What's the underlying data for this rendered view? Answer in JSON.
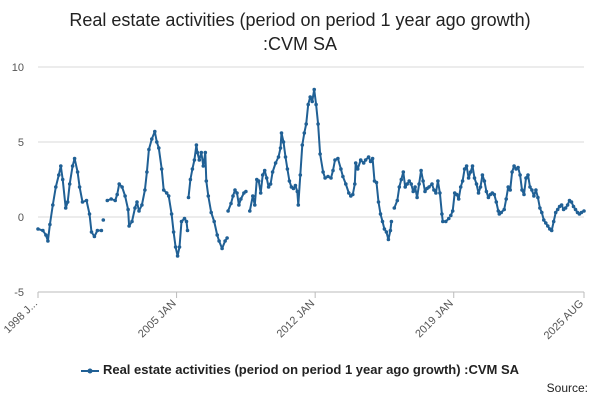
{
  "chart_data": {
    "type": "line",
    "title_line1": "Real estate activities (period on period 1 year ago growth)",
    "title_line2": ":CVM SA",
    "xlabel": "",
    "ylabel": "",
    "ylim": [
      -5,
      10
    ],
    "yticks": [
      -5,
      0,
      5,
      10
    ],
    "xlim": [
      1998.0,
      2025.58
    ],
    "xticks": [
      {
        "value": 1998.0,
        "label": "1998 J..."
      },
      {
        "value": 2005.0,
        "label": "2005 JAN"
      },
      {
        "value": 2012.0,
        "label": "2012 JAN"
      },
      {
        "value": 2019.0,
        "label": "2019 JAN"
      },
      {
        "value": 2025.58,
        "label": "2025 AUG"
      }
    ],
    "series": [
      {
        "name": "Real estate activities (period on period 1 year ago growth) :CVM SA",
        "color": "#206095",
        "segments": [
          [
            [
              1998.0,
              -0.8
            ],
            [
              1998.25,
              -0.9
            ],
            [
              1998.4,
              -1.2
            ],
            [
              1998.5,
              -1.6
            ],
            [
              1998.6,
              -0.5
            ],
            [
              1998.75,
              0.8
            ],
            [
              1998.9,
              2.0
            ],
            [
              1999.05,
              2.8
            ],
            [
              1999.15,
              3.4
            ],
            [
              1999.25,
              2.5
            ],
            [
              1999.4,
              0.6
            ],
            [
              1999.5,
              1.0
            ],
            [
              1999.6,
              2.2
            ],
            [
              1999.75,
              3.4
            ],
            [
              1999.85,
              3.9
            ],
            [
              2000.0,
              3.0
            ],
            [
              2000.1,
              2.0
            ],
            [
              2000.25,
              1.0
            ],
            [
              2000.45,
              1.1
            ],
            [
              2000.6,
              0.2
            ],
            [
              2000.7,
              -1.0
            ],
            [
              2000.85,
              -1.3
            ],
            [
              2001.0,
              -0.9
            ],
            [
              2001.2,
              -0.9
            ]
          ],
          [
            [
              2001.3,
              -0.2
            ]
          ],
          [
            [
              2001.5,
              1.1
            ],
            [
              2001.7,
              1.2
            ],
            [
              2001.9,
              1.1
            ],
            [
              2002.0,
              1.5
            ],
            [
              2002.1,
              2.2
            ],
            [
              2002.25,
              2.0
            ],
            [
              2002.4,
              1.4
            ],
            [
              2002.55,
              0.5
            ],
            [
              2002.6,
              -0.6
            ],
            [
              2002.75,
              -0.3
            ],
            [
              2002.9,
              0.6
            ],
            [
              2003.0,
              1.0
            ],
            [
              2003.1,
              0.4
            ],
            [
              2003.25,
              0.8
            ],
            [
              2003.4,
              1.8
            ],
            [
              2003.5,
              3.0
            ],
            [
              2003.6,
              4.5
            ],
            [
              2003.75,
              5.2
            ],
            [
              2003.9,
              5.7
            ],
            [
              2004.0,
              5.0
            ],
            [
              2004.1,
              4.6
            ],
            [
              2004.25,
              3.2
            ],
            [
              2004.35,
              1.8
            ],
            [
              2004.5,
              1.6
            ],
            [
              2004.6,
              1.4
            ],
            [
              2004.75,
              0.2
            ],
            [
              2004.85,
              -1.0
            ],
            [
              2004.95,
              -2.0
            ],
            [
              2005.05,
              -2.6
            ],
            [
              2005.15,
              -2.0
            ],
            [
              2005.25,
              -0.3
            ],
            [
              2005.4,
              -0.1
            ],
            [
              2005.5,
              -0.3
            ],
            [
              2005.55,
              -0.9
            ]
          ],
          [
            [
              2005.6,
              1.3
            ],
            [
              2005.7,
              2.5
            ],
            [
              2005.8,
              3.2
            ],
            [
              2005.9,
              3.8
            ],
            [
              2006.0,
              4.8
            ],
            [
              2006.05,
              4.3
            ],
            [
              2006.15,
              3.8
            ],
            [
              2006.25,
              4.3
            ],
            [
              2006.35,
              3.4
            ],
            [
              2006.45,
              4.3
            ],
            [
              2006.5,
              2.4
            ],
            [
              2006.6,
              1.4
            ],
            [
              2006.75,
              0.3
            ],
            [
              2006.9,
              -0.3
            ],
            [
              2007.05,
              -1.2
            ],
            [
              2007.15,
              -1.6
            ],
            [
              2007.3,
              -2.1
            ],
            [
              2007.45,
              -1.6
            ],
            [
              2007.55,
              -1.4
            ]
          ],
          [
            [
              2007.6,
              0.4
            ],
            [
              2007.75,
              0.9
            ],
            [
              2007.85,
              1.4
            ],
            [
              2007.95,
              1.8
            ],
            [
              2008.05,
              1.6
            ],
            [
              2008.15,
              0.8
            ],
            [
              2008.25,
              1.2
            ],
            [
              2008.4,
              1.6
            ],
            [
              2008.5,
              1.7
            ]
          ],
          [
            [
              2008.7,
              0.4
            ],
            [
              2008.85,
              1.4
            ],
            [
              2008.95,
              0.8
            ],
            [
              2009.05,
              2.5
            ],
            [
              2009.15,
              2.4
            ],
            [
              2009.25,
              1.6
            ],
            [
              2009.35,
              2.8
            ],
            [
              2009.45,
              3.1
            ],
            [
              2009.55,
              2.6
            ],
            [
              2009.65,
              2.0
            ],
            [
              2009.75,
              2.2
            ],
            [
              2009.85,
              3.0
            ],
            [
              2010.0,
              3.6
            ],
            [
              2010.15,
              4.0
            ],
            [
              2010.25,
              4.6
            ],
            [
              2010.3,
              5.6
            ],
            [
              2010.4,
              5.0
            ],
            [
              2010.5,
              4.0
            ],
            [
              2010.6,
              3.2
            ],
            [
              2010.7,
              2.4
            ],
            [
              2010.8,
              2.0
            ],
            [
              2010.9,
              1.9
            ],
            [
              2011.0,
              2.1
            ],
            [
              2011.1,
              1.7
            ],
            [
              2011.15,
              0.8
            ],
            [
              2011.25,
              2.8
            ],
            [
              2011.35,
              4.8
            ],
            [
              2011.45,
              5.6
            ],
            [
              2011.55,
              6.2
            ],
            [
              2011.65,
              7.5
            ],
            [
              2011.75,
              8.0
            ],
            [
              2011.85,
              7.7
            ],
            [
              2011.95,
              8.5
            ],
            [
              2012.05,
              7.5
            ],
            [
              2012.15,
              6.2
            ],
            [
              2012.25,
              4.2
            ],
            [
              2012.4,
              3.0
            ],
            [
              2012.5,
              2.6
            ],
            [
              2012.65,
              2.7
            ],
            [
              2012.8,
              2.6
            ],
            [
              2012.9,
              3.1
            ],
            [
              2013.0,
              3.8
            ],
            [
              2013.15,
              3.9
            ],
            [
              2013.3,
              3.2
            ],
            [
              2013.4,
              2.7
            ],
            [
              2013.55,
              2.2
            ],
            [
              2013.7,
              1.6
            ],
            [
              2013.8,
              1.4
            ],
            [
              2013.9,
              1.5
            ],
            [
              2014.0,
              2.2
            ],
            [
              2014.05,
              3.6
            ],
            [
              2014.15,
              3.2
            ],
            [
              2014.3,
              3.8
            ],
            [
              2014.45,
              3.6
            ],
            [
              2014.55,
              3.8
            ],
            [
              2014.7,
              4.0
            ],
            [
              2014.8,
              3.7
            ],
            [
              2014.9,
              3.9
            ],
            [
              2015.0,
              2.4
            ],
            [
              2015.1,
              2.3
            ],
            [
              2015.2,
              1.0
            ],
            [
              2015.3,
              0.2
            ],
            [
              2015.4,
              -0.3
            ],
            [
              2015.5,
              -0.8
            ],
            [
              2015.6,
              -1.0
            ],
            [
              2015.7,
              -1.5
            ],
            [
              2015.8,
              -0.9
            ],
            [
              2015.85,
              -0.3
            ]
          ],
          [
            [
              2016.0,
              0.6
            ],
            [
              2016.15,
              1.1
            ],
            [
              2016.25,
              2.0
            ],
            [
              2016.35,
              2.5
            ],
            [
              2016.45,
              3.0
            ],
            [
              2016.55,
              2.0
            ],
            [
              2016.65,
              2.2
            ],
            [
              2016.75,
              2.4
            ],
            [
              2016.85,
              2.2
            ],
            [
              2016.95,
              1.7
            ],
            [
              2017.05,
              2.0
            ],
            [
              2017.15,
              1.3
            ],
            [
              2017.25,
              2.2
            ],
            [
              2017.35,
              3.1
            ],
            [
              2017.45,
              2.4
            ],
            [
              2017.55,
              1.7
            ],
            [
              2017.65,
              1.9
            ],
            [
              2017.75,
              2.0
            ],
            [
              2017.9,
              2.2
            ],
            [
              2018.0,
              1.8
            ],
            [
              2018.1,
              1.6
            ],
            [
              2018.2,
              2.4
            ],
            [
              2018.3,
              1.6
            ],
            [
              2018.4,
              0.2
            ],
            [
              2018.45,
              -0.3
            ],
            [
              2018.6,
              -0.3
            ],
            [
              2018.75,
              -0.1
            ]
          ],
          [
            [
              2018.85,
              0.1
            ],
            [
              2018.95,
              0.4
            ],
            [
              2019.05,
              1.6
            ],
            [
              2019.15,
              1.5
            ],
            [
              2019.25,
              1.2
            ],
            [
              2019.35,
              2.0
            ],
            [
              2019.45,
              2.4
            ],
            [
              2019.55,
              3.2
            ],
            [
              2019.65,
              3.4
            ],
            [
              2019.75,
              2.6
            ],
            [
              2019.85,
              3.0
            ],
            [
              2019.95,
              3.4
            ],
            [
              2020.05,
              2.6
            ],
            [
              2020.15,
              2.2
            ],
            [
              2020.25,
              1.6
            ],
            [
              2020.35,
              2.0
            ],
            [
              2020.45,
              2.8
            ],
            [
              2020.55,
              2.4
            ],
            [
              2020.65,
              1.7
            ],
            [
              2020.75,
              1.3
            ],
            [
              2020.85,
              1.5
            ],
            [
              2020.95,
              1.6
            ],
            [
              2021.05,
              1.5
            ],
            [
              2021.15,
              1.0
            ],
            [
              2021.25,
              0.4
            ],
            [
              2021.3,
              0.2
            ]
          ],
          [
            [
              2021.4,
              0.3
            ],
            [
              2021.55,
              0.5
            ],
            [
              2021.65,
              1.2
            ],
            [
              2021.75,
              2.0
            ],
            [
              2021.85,
              1.8
            ],
            [
              2021.95,
              3.0
            ],
            [
              2022.05,
              3.4
            ],
            [
              2022.15,
              3.2
            ],
            [
              2022.25,
              3.3
            ],
            [
              2022.35,
              2.8
            ],
            [
              2022.45,
              1.8
            ],
            [
              2022.55,
              1.5
            ],
            [
              2022.65,
              2.6
            ],
            [
              2022.75,
              2.8
            ],
            [
              2022.85,
              2.0
            ],
            [
              2022.95,
              1.8
            ],
            [
              2023.05,
              1.4
            ],
            [
              2023.15,
              1.8
            ],
            [
              2023.25,
              1.3
            ],
            [
              2023.35,
              0.6
            ],
            [
              2023.45,
              0.3
            ],
            [
              2023.55,
              -0.2
            ],
            [
              2023.65,
              -0.4
            ],
            [
              2023.75,
              -0.6
            ],
            [
              2023.85,
              -0.8
            ],
            [
              2023.95,
              -0.9
            ],
            [
              2024.05,
              -0.3
            ],
            [
              2024.15,
              0.3
            ],
            [
              2024.25,
              0.5
            ],
            [
              2024.35,
              0.7
            ],
            [
              2024.45,
              0.8
            ],
            [
              2024.55,
              0.5
            ],
            [
              2024.65,
              0.6
            ],
            [
              2024.75,
              0.8
            ],
            [
              2024.85,
              1.1
            ],
            [
              2024.95,
              1.0
            ],
            [
              2025.05,
              0.7
            ],
            [
              2025.15,
              0.5
            ],
            [
              2025.25,
              0.3
            ],
            [
              2025.35,
              0.2
            ],
            [
              2025.45,
              0.3
            ],
            [
              2025.58,
              0.4
            ]
          ]
        ]
      }
    ]
  },
  "legend": {
    "label": "Real estate activities (period on period 1 year ago growth) :CVM SA",
    "icon": "line-marker-icon"
  },
  "source_text": "Source:"
}
